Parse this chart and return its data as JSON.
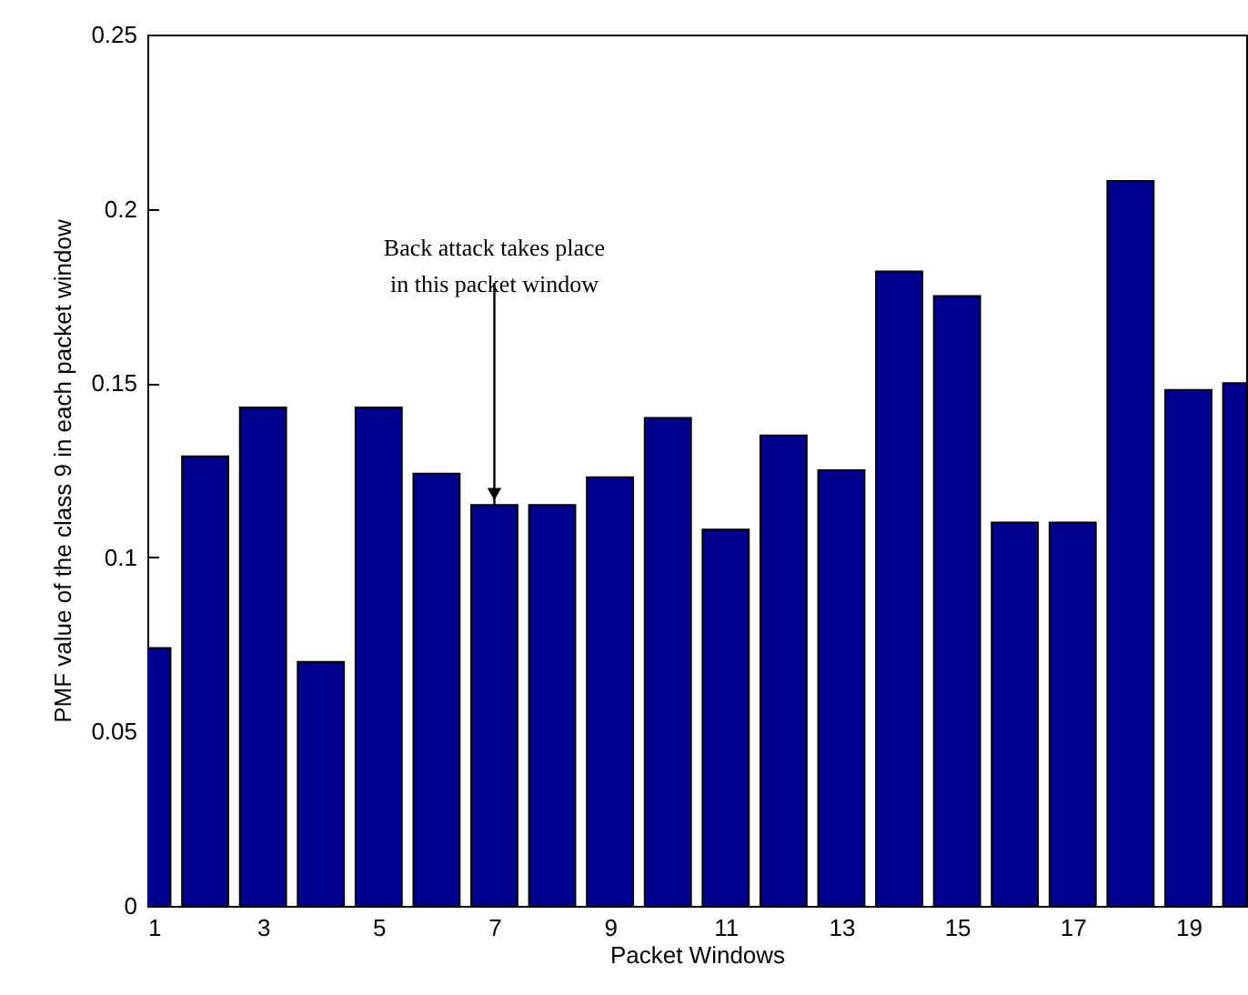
{
  "chart_data": {
    "type": "bar",
    "xlabel": "Packet Windows",
    "ylabel": "PMF value of the class 9 in each packet window",
    "x": [
      1,
      2,
      3,
      4,
      5,
      6,
      7,
      8,
      9,
      10,
      11,
      12,
      13,
      14,
      15,
      16,
      17,
      18,
      19,
      20
    ],
    "values": [
      0.074,
      0.129,
      0.143,
      0.07,
      0.143,
      0.124,
      0.115,
      0.115,
      0.123,
      0.14,
      0.108,
      0.135,
      0.125,
      0.182,
      0.175,
      0.11,
      0.11,
      0.208,
      0.148,
      0.15
    ],
    "color": "#00008f",
    "xlim": [
      1,
      20
    ],
    "xticks": [
      1,
      3,
      5,
      7,
      9,
      11,
      13,
      15,
      17,
      19
    ],
    "ylim": [
      0,
      0.25
    ],
    "yticks": [
      {
        "value": 0,
        "label": "0"
      },
      0.05,
      {
        "value": 0.1,
        "label": "0.1"
      },
      0.15,
      {
        "value": 0.2,
        "label": "0.2"
      },
      0.25
    ],
    "grid": false,
    "annotations": [
      {
        "text": "Back attack takes place\nin this packet window",
        "x": 7,
        "y": 0.115
      }
    ]
  }
}
